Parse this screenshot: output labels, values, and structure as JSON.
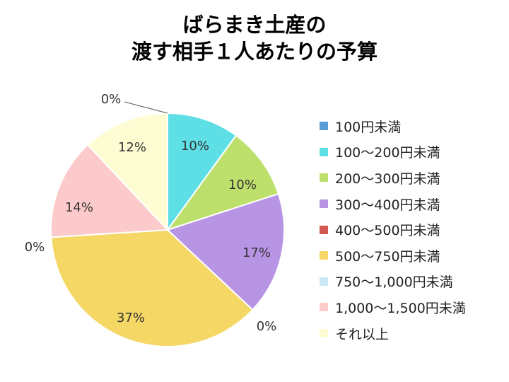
{
  "chart_data": {
    "type": "pie",
    "title": [
      "ばらまき土産の",
      "渡す相手１人あたりの予算"
    ],
    "start_angle_deg": 0,
    "direction": "clockwise",
    "slices": [
      {
        "label": "100円未満",
        "value": 0,
        "display": "0%",
        "color": "#5b9bd5"
      },
      {
        "label": "100〜200円未満",
        "value": 10,
        "display": "10%",
        "color": "#5ddfe5"
      },
      {
        "label": "200〜300円未満",
        "value": 10,
        "display": "10%",
        "color": "#bde06c"
      },
      {
        "label": "300〜400円未満",
        "value": 17,
        "display": "17%",
        "color": "#b894e4"
      },
      {
        "label": "400〜500円未満",
        "value": 0,
        "display": "0%",
        "color": "#d05a52"
      },
      {
        "label": "500〜750円未満",
        "value": 37,
        "display": "37%",
        "color": "#f5d766"
      },
      {
        "label": "750〜1,000円未満",
        "value": 0,
        "display": "0%",
        "color": "#cce7f5"
      },
      {
        "label": "1,000〜1,500円未満",
        "value": 14,
        "display": "14%",
        "color": "#fccacb"
      },
      {
        "label": "それ以上",
        "value": 12,
        "display": "12%",
        "color": "#fdfcd3"
      }
    ],
    "legend_position": "right"
  }
}
